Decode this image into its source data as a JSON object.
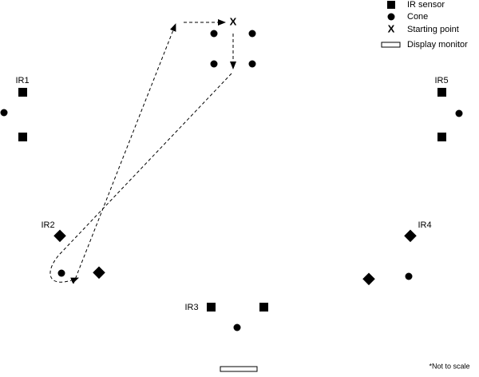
{
  "legend": {
    "items": [
      {
        "label": "IR sensor"
      },
      {
        "label": "Cone"
      },
      {
        "label": "Starting point",
        "symbol": "X"
      },
      {
        "label": "Display monitor"
      }
    ]
  },
  "sensors": [
    {
      "label": "IR1"
    },
    {
      "label": "IR2"
    },
    {
      "label": "IR3"
    },
    {
      "label": "IR4"
    },
    {
      "label": "IR5"
    }
  ],
  "start": {
    "label": "X"
  },
  "note": "*Not to scale"
}
